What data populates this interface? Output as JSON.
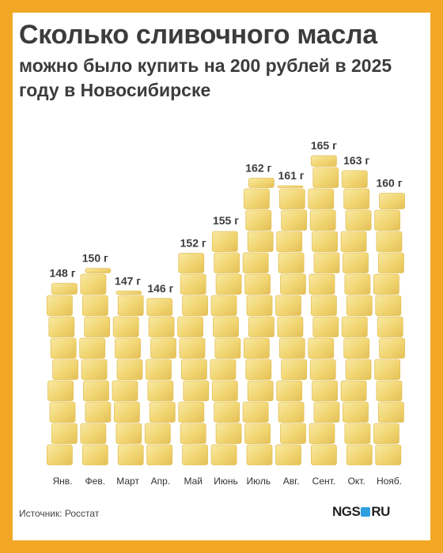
{
  "title": "Сколько сливочного масла",
  "subtitle": "можно было купить на 200 рублей в 2025 году в Новосибирске",
  "source": "Источник: Росстат",
  "logo": {
    "left": "NGS",
    "right": "RU"
  },
  "colors": {
    "frame": "#f2a825",
    "butter": "#f4dc7e",
    "butter_dark": "#e3c25a",
    "text": "#3c3c3c",
    "logo_dot": "#2f9fe0"
  },
  "chart_data": {
    "type": "bar",
    "unit": "г",
    "categories": [
      "Янв.",
      "Фев.",
      "Март",
      "Апр.",
      "Май",
      "Июнь",
      "Июль",
      "Авг.",
      "Сент.",
      "Окт.",
      "Нояб."
    ],
    "values": [
      148,
      150,
      147,
      146,
      152,
      155,
      162,
      161,
      165,
      163,
      160
    ],
    "data_labels": [
      "148 г",
      "150 г",
      "147 г",
      "146 г",
      "152 г",
      "155 г",
      "162 г",
      "161 г",
      "165 г",
      "163 г",
      "160 г"
    ]
  }
}
